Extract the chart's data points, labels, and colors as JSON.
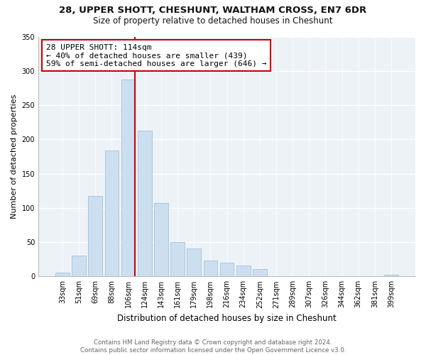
{
  "title": "28, UPPER SHOTT, CHESHUNT, WALTHAM CROSS, EN7 6DR",
  "subtitle": "Size of property relative to detached houses in Cheshunt",
  "xlabel": "Distribution of detached houses by size in Cheshunt",
  "ylabel": "Number of detached properties",
  "bar_labels": [
    "33sqm",
    "51sqm",
    "69sqm",
    "88sqm",
    "106sqm",
    "124sqm",
    "143sqm",
    "161sqm",
    "179sqm",
    "198sqm",
    "216sqm",
    "234sqm",
    "252sqm",
    "271sqm",
    "289sqm",
    "307sqm",
    "326sqm",
    "344sqm",
    "362sqm",
    "381sqm",
    "399sqm"
  ],
  "bar_values": [
    5,
    30,
    117,
    184,
    287,
    213,
    107,
    50,
    41,
    23,
    20,
    16,
    11,
    0,
    0,
    0,
    0,
    0,
    0,
    0,
    2
  ],
  "bar_color": "#ccdff0",
  "bar_edge_color": "#a8c8e0",
  "marker_bar_index": 4,
  "marker_line_color": "#cc0000",
  "annotation_line1": "28 UPPER SHOTT: 114sqm",
  "annotation_line2": "← 40% of detached houses are smaller (439)",
  "annotation_line3": "59% of semi-detached houses are larger (646) →",
  "annotation_box_color": "#ffffff",
  "annotation_box_edge": "#cc0000",
  "ylim": [
    0,
    350
  ],
  "yticks": [
    0,
    50,
    100,
    150,
    200,
    250,
    300,
    350
  ],
  "footer_text": "Contains HM Land Registry data © Crown copyright and database right 2024.\nContains public sector information licensed under the Open Government Licence v3.0.",
  "background_color": "#ffffff"
}
